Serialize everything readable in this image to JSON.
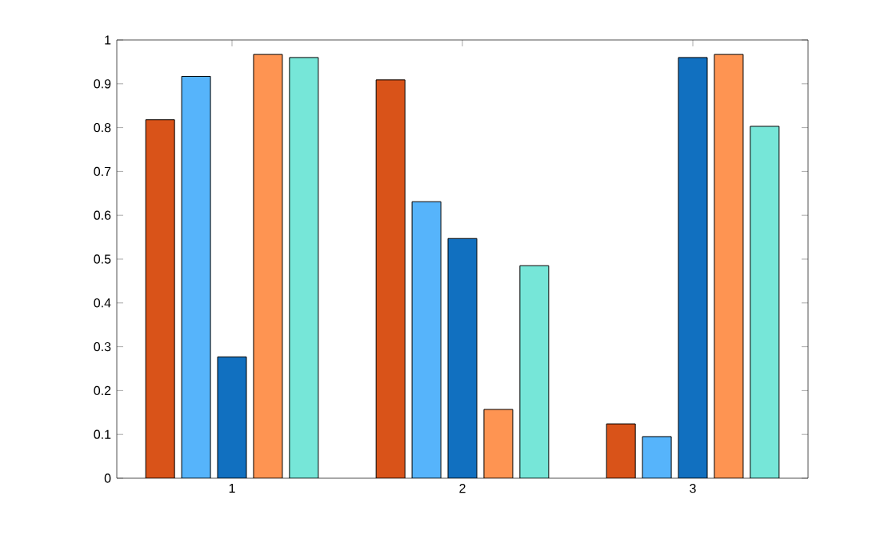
{
  "chart_data": {
    "type": "bar",
    "categories": [
      "1",
      "2",
      "3"
    ],
    "series": [
      {
        "color": "#d95319",
        "values": [
          0.818,
          0.909,
          0.124
        ]
      },
      {
        "color": "#56b4fb",
        "values": [
          0.917,
          0.631,
          0.095
        ]
      },
      {
        "color": "#1170c0",
        "values": [
          0.277,
          0.547,
          0.96
        ]
      },
      {
        "color": "#fe9452",
        "values": [
          0.967,
          0.157,
          0.967
        ]
      },
      {
        "color": "#76e6d8",
        "values": [
          0.96,
          0.485,
          0.803
        ]
      }
    ],
    "ylim": [
      0,
      1
    ],
    "yticks": [
      0,
      0.1,
      0.2,
      0.3,
      0.4,
      0.5,
      0.6,
      0.7,
      0.8,
      0.9,
      1
    ],
    "grid": false
  }
}
